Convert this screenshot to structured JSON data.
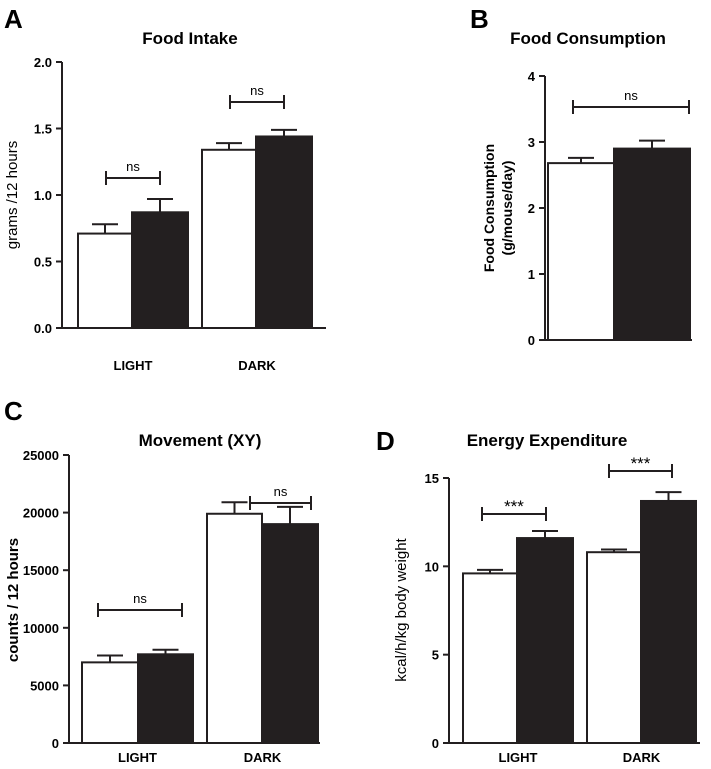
{
  "chart_data": [
    {
      "panel": "A",
      "type": "bar",
      "title": "Food Intake",
      "ylabel": "grams /12 hours",
      "xlabel": "",
      "categories": [
        "LIGHT",
        "DARK"
      ],
      "yticks": [
        "0.0",
        "0.5",
        "1.0",
        "1.5",
        "2.0"
      ],
      "ylim": [
        0,
        2.0
      ],
      "series": [
        {
          "name": "group 1 (white)",
          "color": "#ffffff",
          "values": [
            0.71,
            1.34
          ],
          "errors": [
            0.07,
            0.05
          ]
        },
        {
          "name": "group 2 (black)",
          "color": "#231f20",
          "values": [
            0.87,
            1.44
          ],
          "errors": [
            0.1,
            0.05
          ]
        }
      ],
      "annotations": [
        "ns",
        "ns"
      ]
    },
    {
      "panel": "B",
      "type": "bar",
      "title": "Food Consumption",
      "ylabel": "Food Consumption",
      "ylabel2": "(g/mouse/day)",
      "categories": [
        ""
      ],
      "yticks": [
        "0",
        "1",
        "2",
        "3",
        "4"
      ],
      "ylim": [
        0,
        4
      ],
      "series": [
        {
          "name": "group 1 (white)",
          "color": "#ffffff",
          "values": [
            2.68
          ],
          "errors": [
            0.08
          ]
        },
        {
          "name": "group 2 (black)",
          "color": "#231f20",
          "values": [
            2.9
          ],
          "errors": [
            0.12
          ]
        }
      ],
      "annotations": [
        "ns"
      ]
    },
    {
      "panel": "C",
      "type": "bar",
      "title": "Movement (XY)",
      "ylabel": "counts / 12 hours",
      "categories": [
        "LIGHT",
        "DARK"
      ],
      "yticks": [
        "0",
        "5000",
        "10000",
        "15000",
        "20000",
        "25000"
      ],
      "ylim": [
        0,
        25000
      ],
      "series": [
        {
          "name": "group 1 (white)",
          "color": "#ffffff",
          "values": [
            7000,
            19900
          ],
          "errors": [
            600,
            1000
          ]
        },
        {
          "name": "group 2 (black)",
          "color": "#231f20",
          "values": [
            7700,
            19000
          ],
          "errors": [
            400,
            1500
          ]
        }
      ],
      "annotations": [
        "ns",
        "ns"
      ]
    },
    {
      "panel": "D",
      "type": "bar",
      "title": "Energy Expenditure",
      "ylabel": "kcal/h/kg body weight",
      "categories": [
        "LIGHT",
        "DARK"
      ],
      "yticks": [
        "0",
        "5",
        "10",
        "15"
      ],
      "ylim": [
        0,
        15
      ],
      "series": [
        {
          "name": "group 1 (white)",
          "color": "#ffffff",
          "values": [
            9.6,
            10.8
          ],
          "errors": [
            0.2,
            0.15
          ]
        },
        {
          "name": "group 2 (black)",
          "color": "#231f20",
          "values": [
            11.6,
            13.7
          ],
          "errors": [
            0.4,
            0.5
          ]
        }
      ],
      "annotations": [
        "***",
        "***"
      ]
    }
  ]
}
